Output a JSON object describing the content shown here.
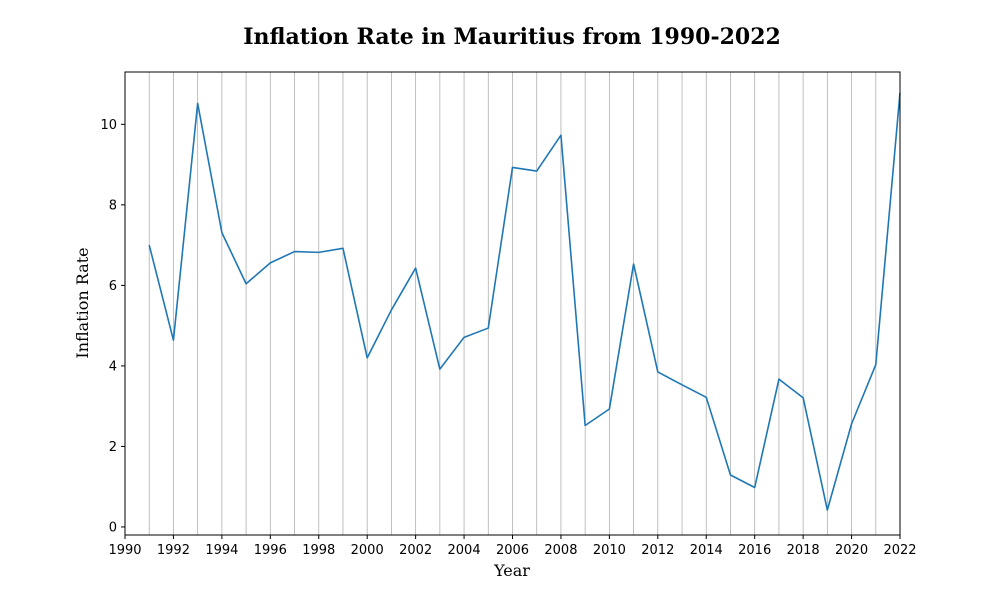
{
  "chart_data": {
    "type": "line",
    "title": "Inflation Rate in Mauritius from 1990-2022",
    "xlabel": "Year",
    "ylabel": "Inflation Rate",
    "xlim": [
      1990,
      2022
    ],
    "ylim": [
      -0.2,
      11.3
    ],
    "x_ticks": [
      "1990",
      "1992",
      "1994",
      "1996",
      "1998",
      "2000",
      "2002",
      "2004",
      "2006",
      "2008",
      "2010",
      "2012",
      "2014",
      "2016",
      "2018",
      "2020",
      "2022"
    ],
    "y_ticks": [
      "0",
      "2",
      "4",
      "6",
      "8",
      "10"
    ],
    "grid": "vertical, every year",
    "series": [
      {
        "color": "#1f77b4",
        "x": [
          1991,
          1992,
          1993,
          1994,
          1995,
          1996,
          1997,
          1998,
          1999,
          2000,
          2001,
          2002,
          2003,
          2004,
          2005,
          2006,
          2007,
          2008,
          2009,
          2010,
          2011,
          2012,
          2013,
          2014,
          2015,
          2016,
          2017,
          2018,
          2019,
          2020,
          2021,
          2022
        ],
        "y": [
          7.0,
          4.64,
          10.52,
          7.31,
          6.04,
          6.56,
          6.84,
          6.82,
          6.92,
          4.2,
          5.39,
          6.43,
          3.92,
          4.71,
          4.94,
          8.93,
          8.84,
          9.73,
          2.52,
          2.93,
          6.53,
          3.85,
          3.53,
          3.22,
          1.29,
          0.98,
          3.67,
          3.21,
          0.42,
          2.56,
          4.03,
          10.78
        ]
      }
    ]
  }
}
